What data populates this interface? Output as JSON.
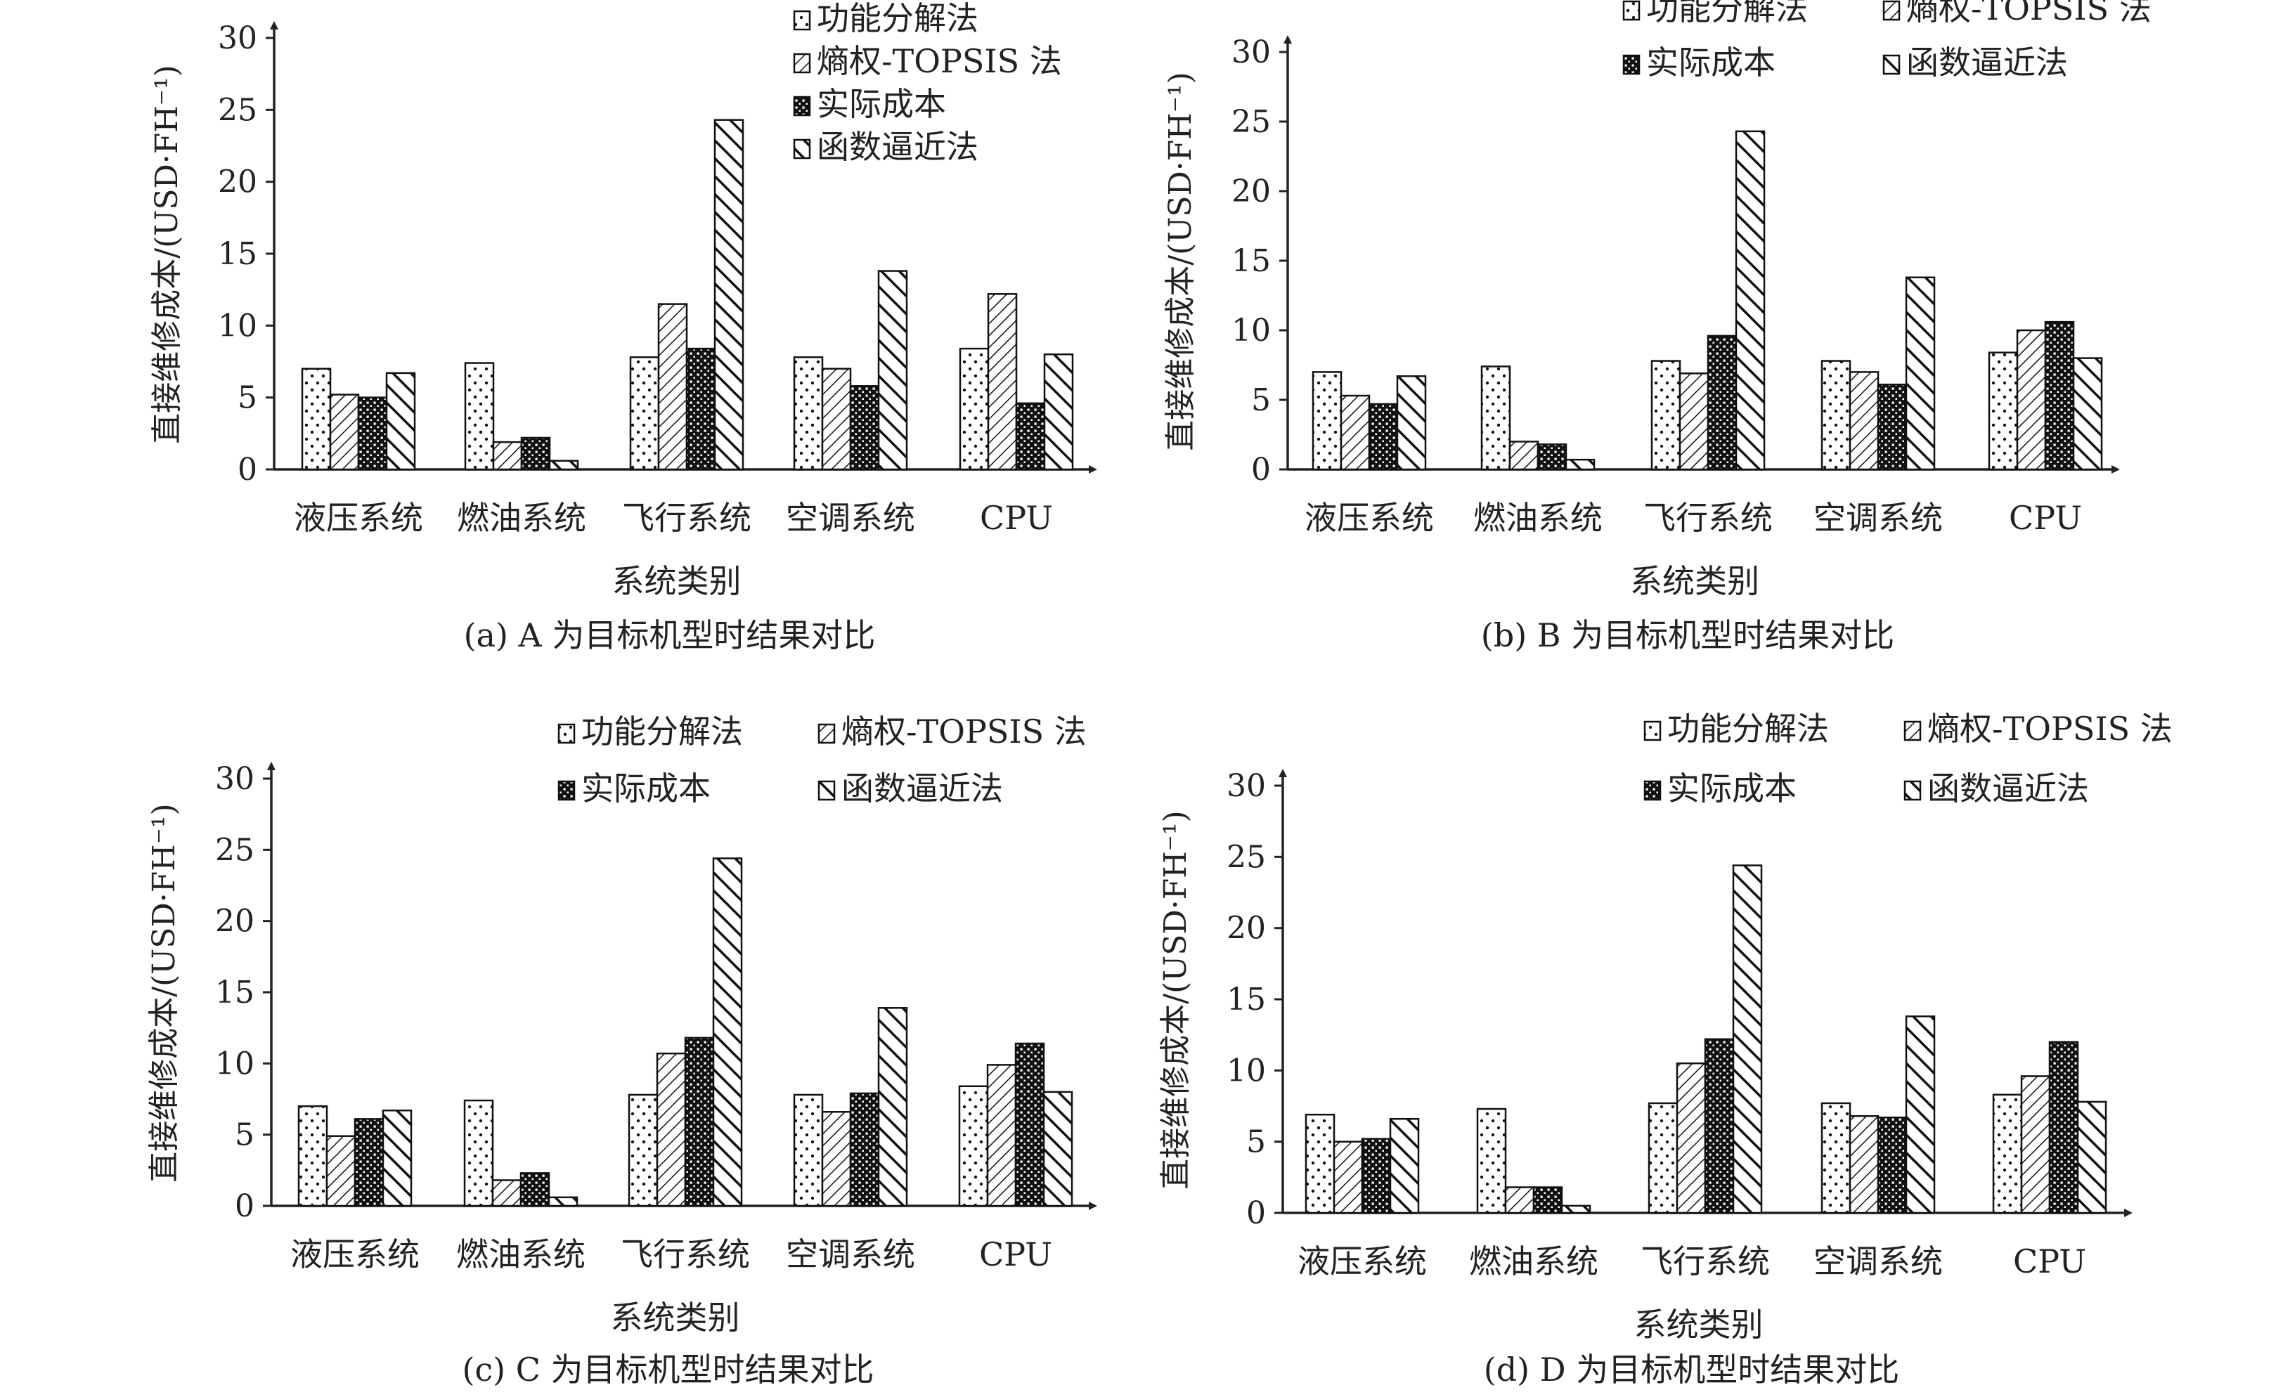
{
  "figure": {
    "panels": [
      {
        "caption": "(a) A 为目标机型时结果对比"
      },
      {
        "caption": "(b) B 为目标机型时结果对比"
      },
      {
        "caption": "(c) C 为目标机型时结果对比"
      },
      {
        "caption": "(d) D 为目标机型时结果对比"
      }
    ]
  },
  "chart_data": [
    {
      "type": "bar",
      "title": "(a) A 为目标机型时结果对比",
      "xlabel": "系统类别",
      "ylabel": "直接维修成本/(USD·FH⁻¹)",
      "ylim": [
        0,
        30
      ],
      "yticks": [
        0,
        5,
        10,
        15,
        20,
        25,
        30
      ],
      "categories": [
        "液压系统",
        "燃油系统",
        "飞行系统",
        "空调系统",
        "CPU"
      ],
      "legend_layout": "single-column",
      "series": [
        {
          "name": "功能分解法",
          "values": [
            7.0,
            7.4,
            7.8,
            7.8,
            8.4
          ]
        },
        {
          "name": "熵权-TOPSIS 法",
          "values": [
            5.2,
            1.9,
            11.5,
            7.0,
            12.2
          ]
        },
        {
          "name": "实际成本",
          "values": [
            5.0,
            2.2,
            8.4,
            5.8,
            4.6
          ]
        },
        {
          "name": "函数逼近法",
          "values": [
            6.7,
            0.6,
            24.3,
            13.8,
            8.0
          ]
        }
      ]
    },
    {
      "type": "bar",
      "title": "(b) B 为目标机型时结果对比",
      "xlabel": "系统类别",
      "ylabel": "直接维修成本/(USD·FH⁻¹)",
      "ylim": [
        0,
        30
      ],
      "yticks": [
        0,
        5,
        10,
        15,
        20,
        25,
        30
      ],
      "categories": [
        "液压系统",
        "燃油系统",
        "飞行系统",
        "空调系统",
        "CPU"
      ],
      "legend_layout": "two-column",
      "series": [
        {
          "name": "功能分解法",
          "values": [
            7.0,
            7.4,
            7.8,
            7.8,
            8.4
          ]
        },
        {
          "name": "熵权-TOPSIS 法",
          "values": [
            5.3,
            2.0,
            6.9,
            7.0,
            10.0
          ]
        },
        {
          "name": "实际成本",
          "values": [
            4.7,
            1.8,
            9.6,
            6.1,
            10.6
          ]
        },
        {
          "name": "函数逼近法",
          "values": [
            6.7,
            0.7,
            24.3,
            13.8,
            8.0
          ]
        }
      ]
    },
    {
      "type": "bar",
      "title": "(c) C 为目标机型时结果对比",
      "xlabel": "系统类别",
      "ylabel": "直接维修成本/(USD·FH⁻¹)",
      "ylim": [
        0,
        30
      ],
      "yticks": [
        0,
        5,
        10,
        15,
        20,
        25,
        30
      ],
      "categories": [
        "液压系统",
        "燃油系统",
        "飞行系统",
        "空调系统",
        "CPU"
      ],
      "legend_layout": "two-column",
      "series": [
        {
          "name": "功能分解法",
          "values": [
            7.0,
            7.4,
            7.8,
            7.8,
            8.4
          ]
        },
        {
          "name": "熵权-TOPSIS 法",
          "values": [
            4.9,
            1.8,
            10.7,
            6.6,
            9.9
          ]
        },
        {
          "name": "实际成本",
          "values": [
            6.1,
            2.3,
            11.8,
            7.9,
            11.4
          ]
        },
        {
          "name": "函数逼近法",
          "values": [
            6.7,
            0.6,
            24.4,
            13.9,
            8.0
          ]
        }
      ]
    },
    {
      "type": "bar",
      "title": "(d) D 为目标机型时结果对比",
      "xlabel": "系统类别",
      "ylabel": "直接维修成本/(USD·FH⁻¹)",
      "ylim": [
        0,
        30
      ],
      "yticks": [
        0,
        5,
        10,
        15,
        20,
        25,
        30
      ],
      "categories": [
        "液压系统",
        "燃油系统",
        "飞行系统",
        "空调系统",
        "CPU"
      ],
      "legend_layout": "two-column",
      "series": [
        {
          "name": "功能分解法",
          "values": [
            6.9,
            7.3,
            7.7,
            7.7,
            8.3
          ]
        },
        {
          "name": "熵权-TOPSIS 法",
          "values": [
            5.0,
            1.8,
            10.5,
            6.8,
            9.6
          ]
        },
        {
          "name": "实际成本",
          "values": [
            5.2,
            1.8,
            12.2,
            6.7,
            12.0
          ]
        },
        {
          "name": "函数逼近法",
          "values": [
            6.6,
            0.5,
            24.4,
            13.8,
            7.8
          ]
        }
      ]
    }
  ]
}
